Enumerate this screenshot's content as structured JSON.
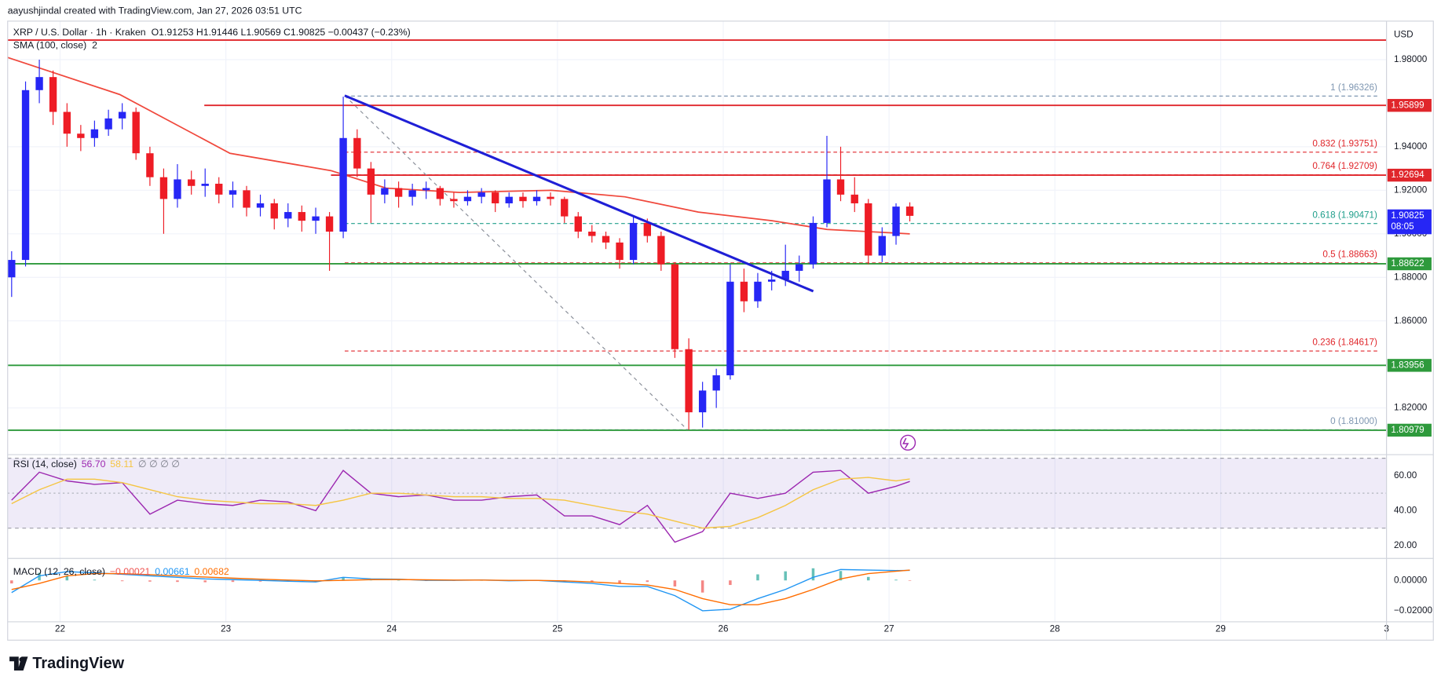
{
  "header": {
    "attribution": "aayushjindal created with TradingView.com, Jan 27, 2026 03:51 UTC"
  },
  "chart_data": {
    "type": "candlestick",
    "title": "XRP / U.S. Dollar · 1h · Kraken",
    "ohlc_text": "O1.91253 H1.91446 L1.90569 C1.90825 −0.00437 (−0.23%)",
    "currency": "USD",
    "x": [
      21.708,
      21.792,
      21.875,
      21.958,
      22.042,
      22.125,
      22.208,
      22.292,
      22.375,
      22.458,
      22.542,
      22.625,
      22.708,
      22.792,
      22.875,
      22.958,
      23.042,
      23.125,
      23.208,
      23.292,
      23.375,
      23.458,
      23.542,
      23.625,
      23.708,
      23.792,
      23.875,
      23.958,
      24.042,
      24.125,
      24.208,
      24.292,
      24.375,
      24.458,
      24.542,
      24.625,
      24.708,
      24.792,
      24.875,
      24.958,
      25.042,
      25.125,
      25.208,
      25.292,
      25.375,
      25.458,
      25.542,
      25.625,
      25.708,
      25.792,
      25.875,
      25.958,
      26.042,
      26.125,
      26.208,
      26.292,
      26.375,
      26.458,
      26.542,
      26.625,
      26.708,
      26.792,
      26.875,
      26.958,
      27.042,
      27.125
    ],
    "candles": [
      [
        1.88,
        1.892,
        1.871,
        1.888
      ],
      [
        1.888,
        1.97,
        1.885,
        1.966
      ],
      [
        1.966,
        1.98,
        1.96,
        1.972
      ],
      [
        1.972,
        1.975,
        1.95,
        1.956
      ],
      [
        1.956,
        1.96,
        1.94,
        1.946
      ],
      [
        1.946,
        1.95,
        1.938,
        1.944
      ],
      [
        1.944,
        1.952,
        1.94,
        1.948
      ],
      [
        1.948,
        1.957,
        1.945,
        1.953
      ],
      [
        1.953,
        1.96,
        1.948,
        1.956
      ],
      [
        1.956,
        1.958,
        1.934,
        1.937
      ],
      [
        1.937,
        1.94,
        1.922,
        1.926
      ],
      [
        1.926,
        1.93,
        1.9,
        1.916
      ],
      [
        1.916,
        1.932,
        1.912,
        1.925
      ],
      [
        1.925,
        1.929,
        1.918,
        1.922
      ],
      [
        1.922,
        1.93,
        1.917,
        1.923
      ],
      [
        1.923,
        1.926,
        1.914,
        1.918
      ],
      [
        1.918,
        1.924,
        1.912,
        1.92
      ],
      [
        1.92,
        1.922,
        1.908,
        1.912
      ],
      [
        1.912,
        1.918,
        1.908,
        1.914
      ],
      [
        1.914,
        1.916,
        1.902,
        1.907
      ],
      [
        1.907,
        1.914,
        1.903,
        1.91
      ],
      [
        1.91,
        1.913,
        1.901,
        1.906
      ],
      [
        1.906,
        1.912,
        1.9,
        1.908
      ],
      [
        1.908,
        1.91,
        1.883,
        1.901
      ],
      [
        1.901,
        1.963,
        1.898,
        1.944
      ],
      [
        1.944,
        1.948,
        1.926,
        1.93
      ],
      [
        1.93,
        1.933,
        1.905,
        1.918
      ],
      [
        1.918,
        1.925,
        1.914,
        1.921
      ],
      [
        1.921,
        1.924,
        1.912,
        1.917
      ],
      [
        1.917,
        1.923,
        1.913,
        1.92
      ],
      [
        1.92,
        1.924,
        1.916,
        1.921
      ],
      [
        1.921,
        1.922,
        1.913,
        1.916
      ],
      [
        1.916,
        1.919,
        1.912,
        1.915
      ],
      [
        1.915,
        1.92,
        1.913,
        1.917
      ],
      [
        1.917,
        1.921,
        1.914,
        1.919
      ],
      [
        1.919,
        1.92,
        1.91,
        1.914
      ],
      [
        1.914,
        1.919,
        1.912,
        1.917
      ],
      [
        1.917,
        1.919,
        1.912,
        1.915
      ],
      [
        1.915,
        1.92,
        1.913,
        1.917
      ],
      [
        1.917,
        1.919,
        1.913,
        1.916
      ],
      [
        1.916,
        1.917,
        1.905,
        1.908
      ],
      [
        1.908,
        1.91,
        1.898,
        1.901
      ],
      [
        1.901,
        1.904,
        1.896,
        1.899
      ],
      [
        1.899,
        1.901,
        1.893,
        1.896
      ],
      [
        1.896,
        1.898,
        1.884,
        1.888
      ],
      [
        1.888,
        1.908,
        1.886,
        1.905
      ],
      [
        1.905,
        1.907,
        1.896,
        1.899
      ],
      [
        1.899,
        1.901,
        1.883,
        1.886
      ],
      [
        1.886,
        1.887,
        1.843,
        1.847
      ],
      [
        1.847,
        1.852,
        1.81,
        1.818
      ],
      [
        1.818,
        1.832,
        1.811,
        1.828
      ],
      [
        1.828,
        1.838,
        1.82,
        1.835
      ],
      [
        1.835,
        1.886,
        1.833,
        1.878
      ],
      [
        1.878,
        1.884,
        1.864,
        1.869
      ],
      [
        1.869,
        1.882,
        1.866,
        1.878
      ],
      [
        1.878,
        1.883,
        1.874,
        1.879
      ],
      [
        1.879,
        1.895,
        1.876,
        1.883
      ],
      [
        1.883,
        1.89,
        1.878,
        1.886
      ],
      [
        1.886,
        1.908,
        1.884,
        1.905
      ],
      [
        1.905,
        1.945,
        1.903,
        1.925
      ],
      [
        1.925,
        1.94,
        1.915,
        1.918
      ],
      [
        1.918,
        1.926,
        1.91,
        1.914
      ],
      [
        1.914,
        1.916,
        1.886,
        1.89
      ],
      [
        1.89,
        1.903,
        1.887,
        1.899
      ],
      [
        1.899,
        1.914,
        1.895,
        1.9125
      ],
      [
        1.91253,
        1.91446,
        1.90569,
        1.90825
      ]
    ],
    "up_color": "#2626f5",
    "down_color": "#ee1c25",
    "xlim": [
      21.684,
      30
    ],
    "xticks": [
      22,
      23,
      24,
      25,
      26,
      27,
      28,
      29,
      {
        "value": 30,
        "label": "3"
      }
    ],
    "ylim": [
      1.7994,
      1.9977
    ],
    "yticks": [
      {
        "value": 1.98,
        "label": "1.98000"
      },
      {
        "value": 1.94,
        "label": "1.94000"
      },
      {
        "value": 1.92,
        "label": "1.92000"
      },
      {
        "value": 1.9,
        "label": "1.90000"
      },
      {
        "value": 1.88,
        "label": "1.88000"
      },
      {
        "value": 1.86,
        "label": "1.86000"
      },
      {
        "value": 1.82,
        "label": "1.82000"
      }
    ],
    "grid": true,
    "sma": {
      "name": "SMA (100, close)",
      "badge": "2",
      "color": "#f0483c",
      "x": [
        21.684,
        22.36,
        23.025,
        23.634,
        23.967,
        24.41,
        24.964,
        25.407,
        25.85,
        26.294,
        26.626,
        27.125
      ],
      "values": [
        1.981,
        1.964,
        1.937,
        1.929,
        1.921,
        1.919,
        1.92,
        1.917,
        1.91,
        1.906,
        1.902,
        1.9
      ]
    },
    "resistance_line": {
      "value": 1.989,
      "color": "#e0262b"
    },
    "levels": [
      {
        "value": 1.95899,
        "color": "#e0262b",
        "from": 22.87
      },
      {
        "value": 1.92694,
        "color": "#e0262b",
        "from": 23.634
      },
      {
        "value": 1.88622,
        "color": "#2e9a3c",
        "from": 21.684
      },
      {
        "value": 1.83956,
        "color": "#2e9a3c",
        "from": 21.684
      },
      {
        "value": 1.80979,
        "color": "#2e9a3c",
        "from": 21.684
      }
    ],
    "fib": {
      "from": 23.717,
      "levels": [
        {
          "value": 1.96326,
          "label": "1 (1.96326)",
          "color": "#7f97b2"
        },
        {
          "value": 1.93751,
          "label": "0.832 (1.93751)",
          "color": "#e0262b"
        },
        {
          "value": 1.92709,
          "label": "0.764 (1.92709)",
          "color": "#e0262b"
        },
        {
          "value": 1.90471,
          "label": "0.618 (1.90471)",
          "color": "#1e9e8a"
        },
        {
          "value": 1.88663,
          "label": "0.5 (1.88663)",
          "color": "#e0262b"
        },
        {
          "value": 1.84617,
          "label": "0.236 (1.84617)",
          "color": "#e0262b"
        },
        {
          "value": 1.81,
          "label": "0 (1.81000)",
          "color": "#7f97b2"
        }
      ]
    },
    "trendline": {
      "color": "#1f1fd6",
      "x": [
        23.717,
        26.543
      ],
      "values": [
        1.9635,
        1.8736
      ]
    },
    "fib_diagonal": {
      "color": "#8a8f99",
      "x": [
        23.717,
        25.784
      ],
      "values": [
        1.9635,
        1.81
      ]
    },
    "last_price": 1.90825,
    "countdown": "08:05",
    "rsi": {
      "name": "RSI (14, close)",
      "legend_values": [
        "56.70",
        "58.11",
        "∅ ∅ ∅ ∅"
      ],
      "x": [
        21.708,
        21.875,
        22.042,
        22.208,
        22.375,
        22.542,
        22.708,
        22.875,
        23.042,
        23.208,
        23.375,
        23.542,
        23.708,
        23.875,
        24.042,
        24.208,
        24.375,
        24.542,
        24.708,
        24.875,
        25.042,
        25.208,
        25.375,
        25.542,
        25.708,
        25.875,
        26.042,
        26.208,
        26.375,
        26.542,
        26.708,
        26.875,
        27.042,
        27.125
      ],
      "series": [
        {
          "color": "#9c27b0",
          "values": [
            46,
            62,
            57,
            55,
            56,
            38,
            46,
            44,
            43,
            46,
            45,
            40,
            63,
            50,
            48,
            49,
            46,
            46,
            48,
            49,
            37,
            37,
            32,
            43,
            22,
            28,
            50,
            47,
            50,
            62,
            63,
            50,
            54,
            56.7
          ]
        },
        {
          "color": "#f5c542",
          "values": [
            44,
            52,
            58,
            58,
            56,
            52,
            48,
            46,
            45,
            44,
            44,
            43,
            46,
            50,
            50,
            49,
            48,
            48,
            47,
            47,
            46,
            43,
            40,
            38,
            34,
            30,
            31,
            36,
            43,
            52,
            58,
            59,
            57,
            58.11
          ]
        }
      ],
      "ylim": [
        13.2,
        71
      ],
      "band": [
        30,
        70
      ],
      "mid": 50,
      "yticks": [
        {
          "value": 60,
          "label": "60.00"
        },
        {
          "value": 40,
          "label": "40.00"
        },
        {
          "value": 20,
          "label": "20.00"
        }
      ]
    },
    "macd": {
      "name": "MACD (12, 26, close)",
      "legend_values": [
        "−0.00021",
        "0.00661",
        "0.00682"
      ],
      "x": [
        21.708,
        21.875,
        22.042,
        22.208,
        22.375,
        22.542,
        22.708,
        22.875,
        23.042,
        23.208,
        23.375,
        23.542,
        23.708,
        23.875,
        24.042,
        24.208,
        24.375,
        24.542,
        24.708,
        24.875,
        25.042,
        25.208,
        25.375,
        25.542,
        25.708,
        25.875,
        26.042,
        26.208,
        26.375,
        26.542,
        26.708,
        26.875,
        27.042,
        27.125
      ],
      "histogram": {
        "up_color": "#26a69a",
        "down_color": "#ef5350",
        "values": [
          -0.002,
          0.005,
          0.0028,
          0.0005,
          -0.0005,
          -0.0008,
          -0.001,
          -0.0012,
          -0.001,
          -0.0008,
          -0.0007,
          -0.0007,
          0.002,
          0.0005,
          0.0002,
          -0.0004,
          -0.0002,
          0.0001,
          -0.0002,
          0,
          -0.0007,
          -0.001,
          -0.002,
          -0.001,
          -0.004,
          -0.008,
          -0.003,
          0.004,
          0.006,
          0.008,
          0.0062,
          0.0023,
          0.0005,
          -0.00021
        ]
      },
      "series": [
        {
          "color": "#2196f3",
          "values": [
            -0.008,
            0.003,
            0.0058,
            0.005,
            0.004,
            0.003,
            0.002,
            0.001,
            0.0005,
            0,
            -0.0005,
            -0.001,
            0.002,
            0.001,
            0.0008,
            0,
            0,
            0.0003,
            -0.0002,
            0,
            -0.001,
            -0.002,
            -0.004,
            -0.004,
            -0.01,
            -0.02,
            -0.019,
            -0.012,
            -0.006,
            0.002,
            0.0072,
            0.0068,
            0.0065,
            0.00661
          ]
        },
        {
          "color": "#ff6d00",
          "values": [
            -0.006,
            -0.002,
            0.003,
            0.0045,
            0.0045,
            0.0038,
            0.003,
            0.0022,
            0.0015,
            0.0008,
            0.0002,
            -0.0003,
            0,
            0.0005,
            0.0006,
            0.0004,
            0.0002,
            0.0002,
            0,
            0,
            -0.0003,
            -0.001,
            -0.002,
            -0.003,
            -0.006,
            -0.012,
            -0.016,
            -0.016,
            -0.012,
            -0.006,
            0.001,
            0.0045,
            0.006,
            0.00682
          ]
        }
      ],
      "ylim": [
        -0.0273,
        0.0133
      ],
      "yticks": [
        {
          "value": 0,
          "label": "0.00000"
        },
        {
          "value": -0.02,
          "label": "−0.02000"
        }
      ]
    }
  },
  "footer": {
    "logo": "TradingView"
  }
}
